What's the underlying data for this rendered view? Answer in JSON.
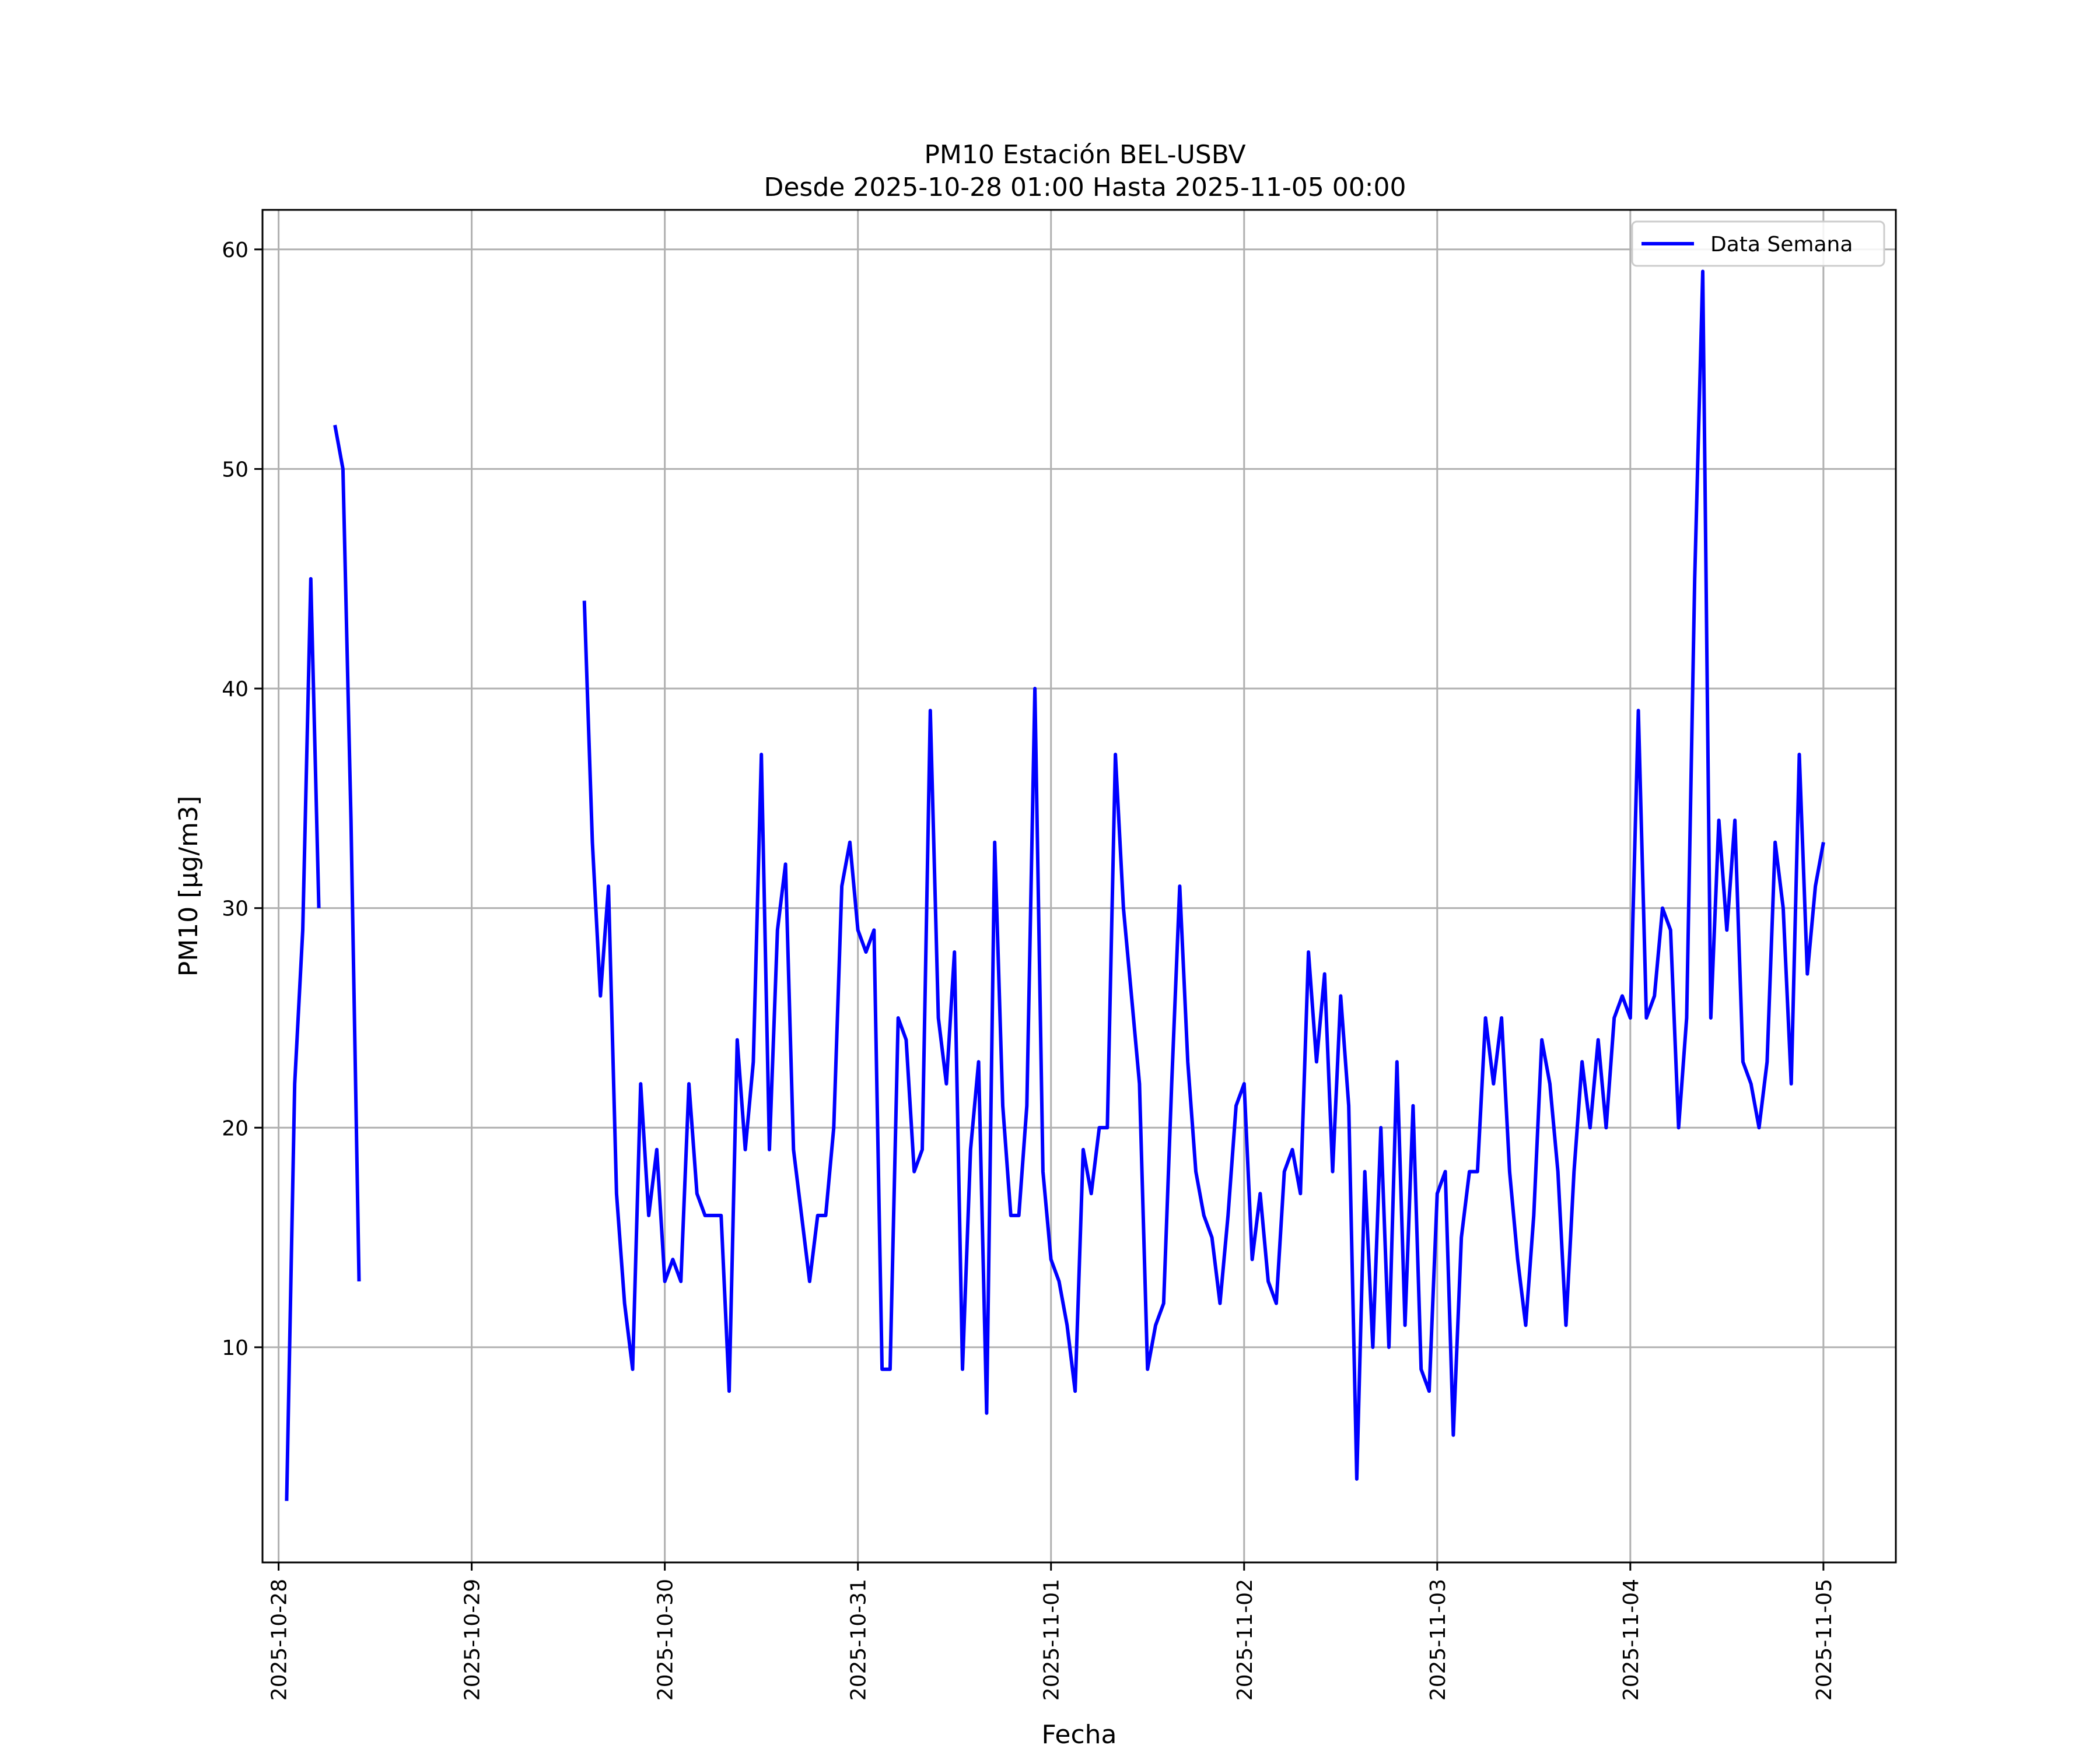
{
  "chart_data": {
    "type": "line",
    "title": "PM10 Estación BEL-USBV",
    "subtitle": "Desde 2025-10-28 01:00 Hasta 2025-11-05 00:00",
    "xlabel": "Fecha",
    "ylabel": "PM10 [μg/m3]",
    "x_ticks": [
      "2025-10-28",
      "2025-10-29",
      "2025-10-30",
      "2025-10-31",
      "2025-11-01",
      "2025-11-02",
      "2025-11-03",
      "2025-11-04",
      "2025-11-05"
    ],
    "y_ticks": [
      10,
      20,
      30,
      40,
      50,
      60
    ],
    "xlim": [
      "2025-10-27 22:00",
      "2025-11-05 09:00"
    ],
    "ylim": [
      0.2,
      61.8
    ],
    "grid": true,
    "legend_position": "top-right",
    "colors": {
      "series": "#0000ff"
    },
    "series": [
      {
        "name": "Data Semana",
        "segments": [
          [
            [
              "2025-10-28 01:00",
              3
            ],
            [
              "2025-10-28 02:00",
              22
            ],
            [
              "2025-10-28 03:00",
              29
            ],
            [
              "2025-10-28 04:00",
              45
            ],
            [
              "2025-10-28 05:00",
              30
            ]
          ],
          [
            [
              "2025-10-28 07:00",
              52
            ],
            [
              "2025-10-28 08:00",
              50
            ],
            [
              "2025-10-28 09:00",
              34
            ],
            [
              "2025-10-28 10:00",
              13
            ]
          ],
          [
            [
              "2025-10-29 14:00",
              44
            ],
            [
              "2025-10-29 15:00",
              33
            ],
            [
              "2025-10-29 16:00",
              26
            ],
            [
              "2025-10-29 17:00",
              31
            ],
            [
              "2025-10-29 18:00",
              17
            ],
            [
              "2025-10-29 19:00",
              12
            ],
            [
              "2025-10-29 20:00",
              9
            ],
            [
              "2025-10-29 21:00",
              22
            ],
            [
              "2025-10-29 22:00",
              16
            ],
            [
              "2025-10-29 23:00",
              19
            ],
            [
              "2025-10-30 00:00",
              13
            ],
            [
              "2025-10-30 01:00",
              14
            ],
            [
              "2025-10-30 02:00",
              13
            ],
            [
              "2025-10-30 03:00",
              22
            ],
            [
              "2025-10-30 04:00",
              17
            ],
            [
              "2025-10-30 05:00",
              16
            ],
            [
              "2025-10-30 06:00",
              16
            ],
            [
              "2025-10-30 07:00",
              16
            ],
            [
              "2025-10-30 08:00",
              8
            ],
            [
              "2025-10-30 09:00",
              24
            ],
            [
              "2025-10-30 10:00",
              19
            ],
            [
              "2025-10-30 11:00",
              23
            ],
            [
              "2025-10-30 12:00",
              37
            ],
            [
              "2025-10-30 13:00",
              19
            ],
            [
              "2025-10-30 14:00",
              29
            ],
            [
              "2025-10-30 15:00",
              32
            ],
            [
              "2025-10-30 16:00",
              19
            ],
            [
              "2025-10-30 17:00",
              16
            ],
            [
              "2025-10-30 18:00",
              13
            ],
            [
              "2025-10-30 19:00",
              16
            ],
            [
              "2025-10-30 20:00",
              16
            ],
            [
              "2025-10-30 21:00",
              20
            ],
            [
              "2025-10-30 22:00",
              31
            ],
            [
              "2025-10-30 23:00",
              33
            ],
            [
              "2025-10-31 00:00",
              29
            ],
            [
              "2025-10-31 01:00",
              28
            ],
            [
              "2025-10-31 02:00",
              29
            ],
            [
              "2025-10-31 03:00",
              9
            ],
            [
              "2025-10-31 04:00",
              9
            ],
            [
              "2025-10-31 05:00",
              25
            ],
            [
              "2025-10-31 06:00",
              24
            ],
            [
              "2025-10-31 07:00",
              18
            ],
            [
              "2025-10-31 08:00",
              19
            ],
            [
              "2025-10-31 09:00",
              39
            ],
            [
              "2025-10-31 10:00",
              25
            ],
            [
              "2025-10-31 11:00",
              22
            ],
            [
              "2025-10-31 12:00",
              28
            ],
            [
              "2025-10-31 13:00",
              9
            ],
            [
              "2025-10-31 14:00",
              19
            ],
            [
              "2025-10-31 15:00",
              23
            ],
            [
              "2025-10-31 16:00",
              7
            ],
            [
              "2025-10-31 17:00",
              33
            ],
            [
              "2025-10-31 18:00",
              21
            ],
            [
              "2025-10-31 19:00",
              16
            ],
            [
              "2025-10-31 20:00",
              16
            ],
            [
              "2025-10-31 21:00",
              21
            ],
            [
              "2025-10-31 22:00",
              40
            ],
            [
              "2025-10-31 23:00",
              18
            ],
            [
              "2025-11-01 00:00",
              14
            ],
            [
              "2025-11-01 01:00",
              13
            ],
            [
              "2025-11-01 02:00",
              11
            ],
            [
              "2025-11-01 03:00",
              8
            ],
            [
              "2025-11-01 04:00",
              19
            ],
            [
              "2025-11-01 05:00",
              17
            ],
            [
              "2025-11-01 06:00",
              20
            ],
            [
              "2025-11-01 07:00",
              20
            ],
            [
              "2025-11-01 08:00",
              37
            ],
            [
              "2025-11-01 09:00",
              30
            ],
            [
              "2025-11-01 10:00",
              26
            ],
            [
              "2025-11-01 11:00",
              22
            ],
            [
              "2025-11-01 12:00",
              9
            ],
            [
              "2025-11-01 13:00",
              11
            ],
            [
              "2025-11-01 14:00",
              12
            ],
            [
              "2025-11-01 15:00",
              22
            ],
            [
              "2025-11-01 16:00",
              31
            ],
            [
              "2025-11-01 17:00",
              23
            ],
            [
              "2025-11-01 18:00",
              18
            ],
            [
              "2025-11-01 19:00",
              16
            ],
            [
              "2025-11-01 20:00",
              15
            ],
            [
              "2025-11-01 21:00",
              12
            ],
            [
              "2025-11-01 22:00",
              16
            ],
            [
              "2025-11-01 23:00",
              21
            ],
            [
              "2025-11-02 00:00",
              22
            ],
            [
              "2025-11-02 01:00",
              14
            ],
            [
              "2025-11-02 02:00",
              17
            ],
            [
              "2025-11-02 03:00",
              13
            ],
            [
              "2025-11-02 04:00",
              12
            ],
            [
              "2025-11-02 05:00",
              18
            ],
            [
              "2025-11-02 06:00",
              19
            ],
            [
              "2025-11-02 07:00",
              17
            ],
            [
              "2025-11-02 08:00",
              28
            ],
            [
              "2025-11-02 09:00",
              23
            ],
            [
              "2025-11-02 10:00",
              27
            ],
            [
              "2025-11-02 11:00",
              18
            ],
            [
              "2025-11-02 12:00",
              26
            ],
            [
              "2025-11-02 13:00",
              21
            ],
            [
              "2025-11-02 14:00",
              4
            ],
            [
              "2025-11-02 15:00",
              18
            ],
            [
              "2025-11-02 16:00",
              10
            ],
            [
              "2025-11-02 17:00",
              20
            ],
            [
              "2025-11-02 18:00",
              10
            ],
            [
              "2025-11-02 19:00",
              23
            ],
            [
              "2025-11-02 20:00",
              11
            ],
            [
              "2025-11-02 21:00",
              21
            ],
            [
              "2025-11-02 22:00",
              9
            ],
            [
              "2025-11-02 23:00",
              8
            ],
            [
              "2025-11-03 00:00",
              17
            ],
            [
              "2025-11-03 01:00",
              18
            ],
            [
              "2025-11-03 02:00",
              6
            ],
            [
              "2025-11-03 03:00",
              15
            ],
            [
              "2025-11-03 04:00",
              18
            ],
            [
              "2025-11-03 05:00",
              18
            ],
            [
              "2025-11-03 06:00",
              25
            ],
            [
              "2025-11-03 07:00",
              22
            ],
            [
              "2025-11-03 08:00",
              25
            ],
            [
              "2025-11-03 09:00",
              18
            ],
            [
              "2025-11-03 10:00",
              14
            ],
            [
              "2025-11-03 11:00",
              11
            ],
            [
              "2025-11-03 12:00",
              16
            ],
            [
              "2025-11-03 13:00",
              24
            ],
            [
              "2025-11-03 14:00",
              22
            ],
            [
              "2025-11-03 15:00",
              18
            ],
            [
              "2025-11-03 16:00",
              11
            ],
            [
              "2025-11-03 17:00",
              18
            ],
            [
              "2025-11-03 18:00",
              23
            ],
            [
              "2025-11-03 19:00",
              20
            ],
            [
              "2025-11-03 20:00",
              24
            ],
            [
              "2025-11-03 21:00",
              20
            ],
            [
              "2025-11-03 22:00",
              25
            ],
            [
              "2025-11-03 23:00",
              26
            ],
            [
              "2025-11-04 00:00",
              25
            ],
            [
              "2025-11-04 01:00",
              39
            ],
            [
              "2025-11-04 02:00",
              25
            ],
            [
              "2025-11-04 03:00",
              26
            ],
            [
              "2025-11-04 04:00",
              30
            ],
            [
              "2025-11-04 05:00",
              29
            ],
            [
              "2025-11-04 06:00",
              20
            ],
            [
              "2025-11-04 07:00",
              25
            ],
            [
              "2025-11-04 08:00",
              45
            ],
            [
              "2025-11-04 09:00",
              59
            ],
            [
              "2025-11-04 10:00",
              25
            ],
            [
              "2025-11-04 11:00",
              34
            ],
            [
              "2025-11-04 12:00",
              29
            ],
            [
              "2025-11-04 13:00",
              34
            ],
            [
              "2025-11-04 14:00",
              23
            ],
            [
              "2025-11-04 15:00",
              22
            ],
            [
              "2025-11-04 16:00",
              20
            ],
            [
              "2025-11-04 17:00",
              23
            ],
            [
              "2025-11-04 18:00",
              33
            ],
            [
              "2025-11-04 19:00",
              30
            ],
            [
              "2025-11-04 20:00",
              22
            ],
            [
              "2025-11-04 21:00",
              37
            ],
            [
              "2025-11-04 22:00",
              27
            ],
            [
              "2025-11-04 23:00",
              31
            ],
            [
              "2025-11-05 00:00",
              33
            ]
          ]
        ]
      }
    ]
  }
}
